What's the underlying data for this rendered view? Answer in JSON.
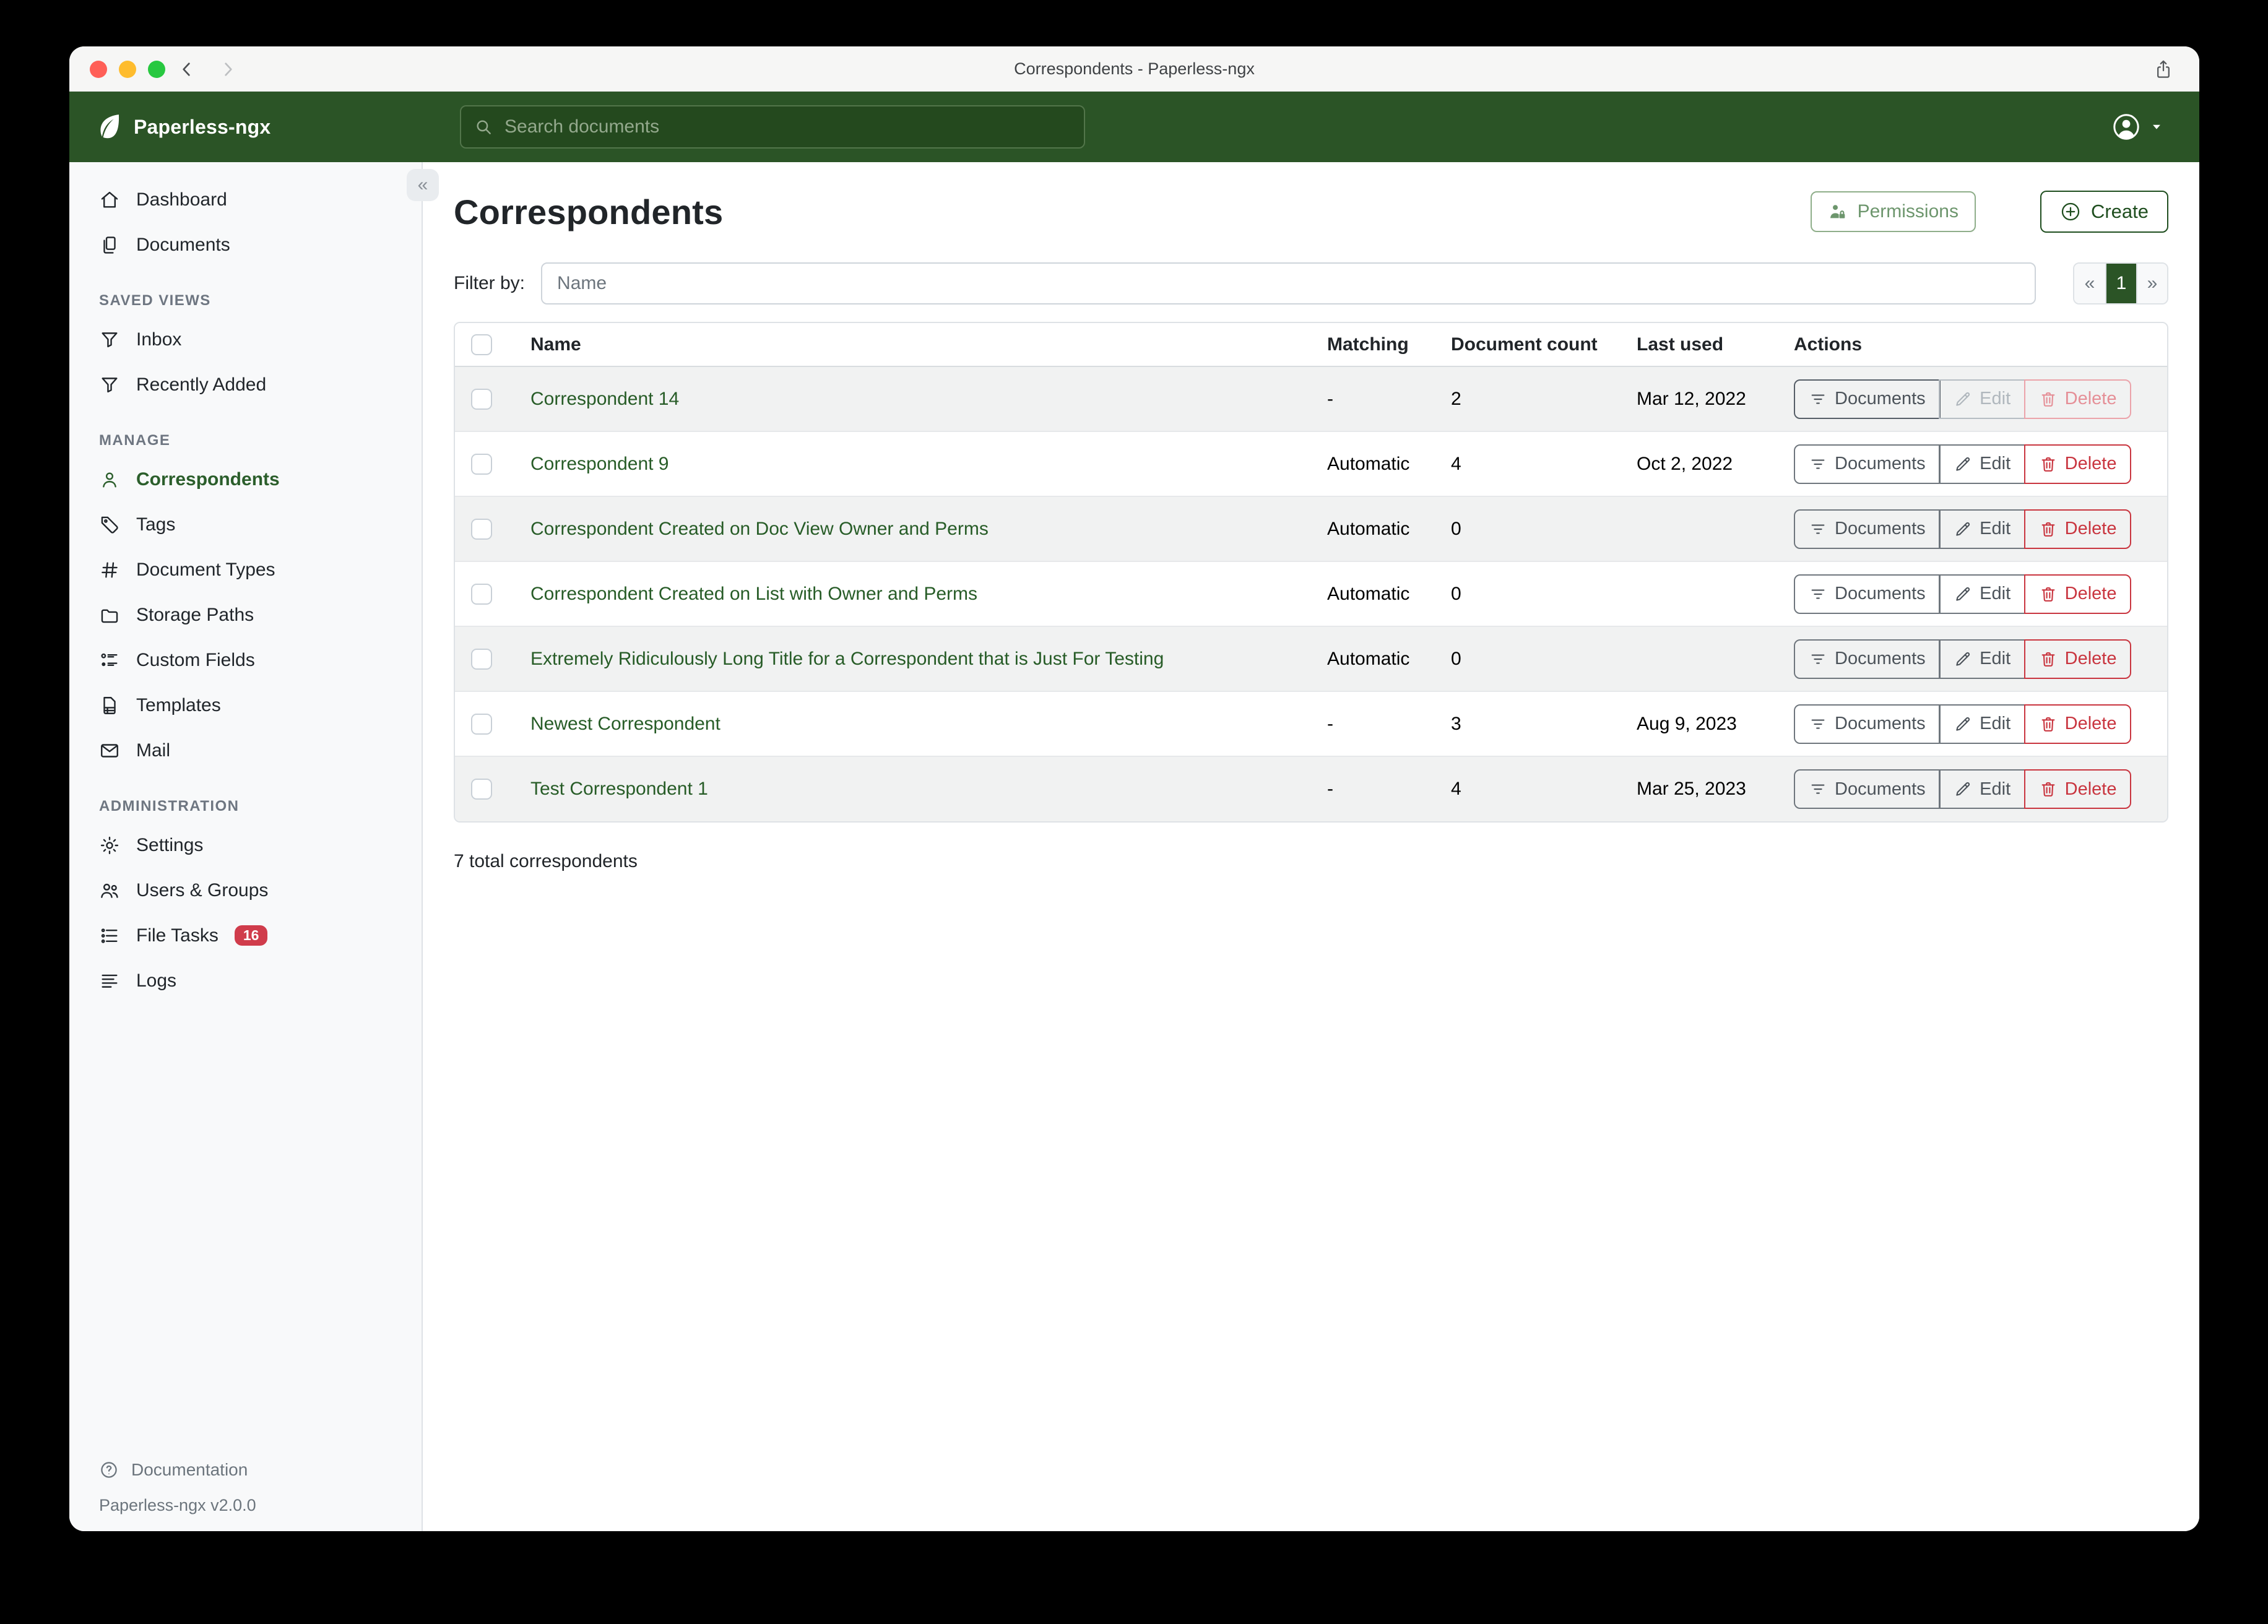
{
  "colors": {
    "brand_green": "#2b5426",
    "search_bg": "#24491e",
    "active_green": "#2b5e2b",
    "link_green": "#275c27",
    "create_green": "#1f4e1f",
    "delete_red": "#c9353f",
    "badge_red": "#d03c4b"
  },
  "window": {
    "title": "Correspondents - Paperless-ngx"
  },
  "appbar": {
    "app_name": "Paperless-ngx",
    "search_placeholder": "Search documents",
    "logo_icon": "leaf",
    "search_icon": "search",
    "avatar_icon": "person-circle"
  },
  "sidebar": {
    "collapse_glyph": "«",
    "sections": [
      {
        "label": "",
        "items": [
          {
            "label": "Dashboard",
            "icon": "house"
          },
          {
            "label": "Documents",
            "icon": "documents"
          }
        ]
      },
      {
        "label": "SAVED VIEWS",
        "items": [
          {
            "label": "Inbox",
            "icon": "funnel"
          },
          {
            "label": "Recently Added",
            "icon": "funnel"
          }
        ]
      },
      {
        "label": "MANAGE",
        "items": [
          {
            "label": "Correspondents",
            "icon": "person",
            "active": true
          },
          {
            "label": "Tags",
            "icon": "tag"
          },
          {
            "label": "Document Types",
            "icon": "hash"
          },
          {
            "label": "Storage Paths",
            "icon": "folder"
          },
          {
            "label": "Custom Fields",
            "icon": "custom-fields"
          },
          {
            "label": "Templates",
            "icon": "template"
          },
          {
            "label": "Mail",
            "icon": "envelope"
          }
        ]
      },
      {
        "label": "ADMINISTRATION",
        "items": [
          {
            "label": "Settings",
            "icon": "gear"
          },
          {
            "label": "Users & Groups",
            "icon": "people"
          },
          {
            "label": "File Tasks",
            "icon": "list-circles",
            "badge": "16"
          },
          {
            "label": "Logs",
            "icon": "text-lines"
          }
        ]
      }
    ],
    "footer": {
      "documentation_label": "Documentation",
      "icon": "question-circle",
      "version": "Paperless-ngx v2.0.0"
    }
  },
  "content": {
    "heading": "Correspondents",
    "permissions_label": "Permissions",
    "create_label": "Create",
    "filter_label": "Filter by:",
    "filter_placeholder": "Name",
    "pagination": {
      "prev": "«",
      "page": "1",
      "next": "»"
    },
    "table": {
      "columns": [
        "Name",
        "Matching",
        "Document count",
        "Last used",
        "Actions"
      ],
      "action_labels": {
        "documents": "Documents",
        "edit": "Edit",
        "delete": "Delete"
      },
      "rows": [
        {
          "name": "Correspondent 14",
          "matching": "-",
          "count": "2",
          "last_used": "Mar 12, 2022",
          "muted_actions": true
        },
        {
          "name": "Correspondent 9",
          "matching": "Automatic",
          "count": "4",
          "last_used": "Oct 2, 2022"
        },
        {
          "name": "Correspondent Created on Doc View Owner and Perms",
          "matching": "Automatic",
          "count": "0",
          "last_used": ""
        },
        {
          "name": "Correspondent Created on List with Owner and Perms",
          "matching": "Automatic",
          "count": "0",
          "last_used": ""
        },
        {
          "name": "Extremely Ridiculously Long Title for a Correspondent that is Just For Testing",
          "matching": "Automatic",
          "count": "0",
          "last_used": ""
        },
        {
          "name": "Newest Correspondent",
          "matching": "-",
          "count": "3",
          "last_used": "Aug 9, 2023"
        },
        {
          "name": "Test Correspondent 1",
          "matching": "-",
          "count": "4",
          "last_used": "Mar 25, 2023"
        }
      ]
    },
    "footer_text": "7 total correspondents"
  }
}
